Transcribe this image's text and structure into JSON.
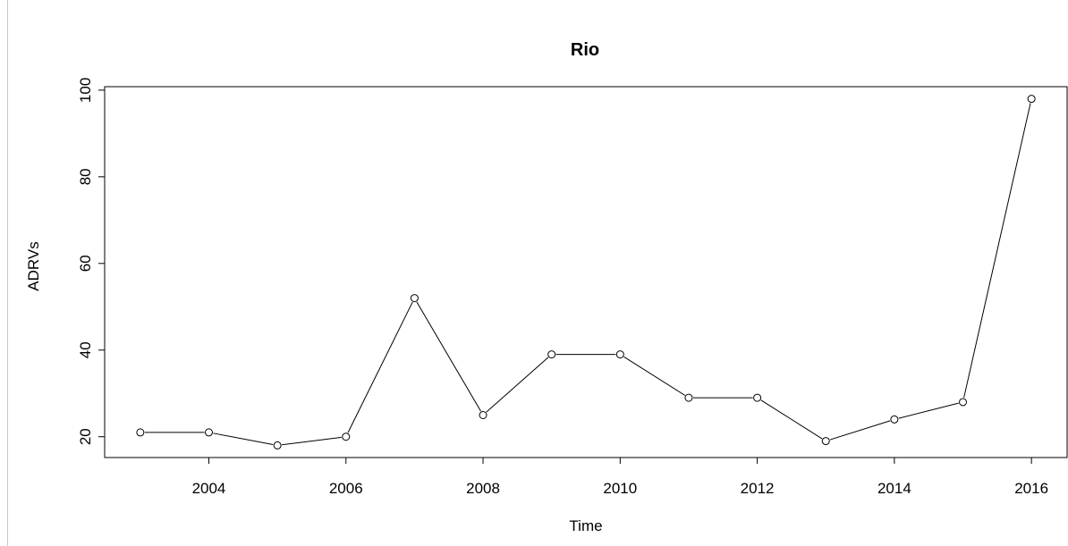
{
  "chart_data": {
    "type": "line",
    "title": "Rio",
    "xlabel": "Time",
    "ylabel": "ADRVs",
    "x": [
      2003,
      2004,
      2005,
      2006,
      2007,
      2008,
      2009,
      2010,
      2011,
      2012,
      2013,
      2014,
      2015,
      2016
    ],
    "series": [
      {
        "values": [
          21,
          21,
          18,
          20,
          52,
          25,
          39,
          39,
          29,
          29,
          19,
          24,
          28,
          98
        ]
      }
    ],
    "x_ticks": [
      "2004",
      "2006",
      "2008",
      "2010",
      "2012",
      "2014",
      "2016"
    ],
    "y_ticks": [
      "20",
      "40",
      "60",
      "80",
      "100"
    ],
    "xlim": [
      2002.48,
      2016.52
    ],
    "ylim": [
      15.2,
      100.8
    ],
    "marker": "open-circle",
    "grid": false,
    "line_color": "#000000"
  }
}
